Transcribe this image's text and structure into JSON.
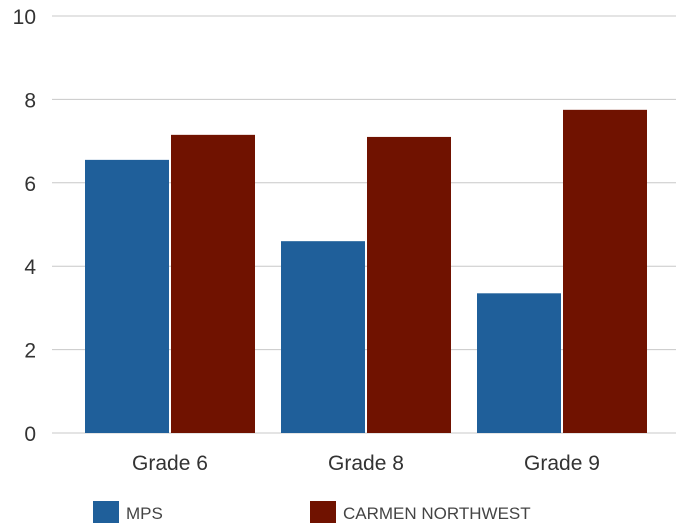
{
  "chart_data": {
    "type": "bar",
    "categories": [
      "Grade 6",
      "Grade 8",
      "Grade 9"
    ],
    "series": [
      {
        "name": "MPS",
        "values": [
          6.55,
          4.6,
          3.35
        ],
        "color": "#1f5f9a"
      },
      {
        "name": "CARMEN NORTHWEST",
        "values": [
          7.15,
          7.1,
          7.75
        ],
        "color": "#701200"
      }
    ],
    "y_ticks": [
      "0",
      "2",
      "4",
      "6",
      "8",
      "10"
    ],
    "ylim": [
      0,
      10
    ],
    "grid": true,
    "legend_position": "bottom",
    "title": "",
    "xlabel": "",
    "ylabel": ""
  }
}
